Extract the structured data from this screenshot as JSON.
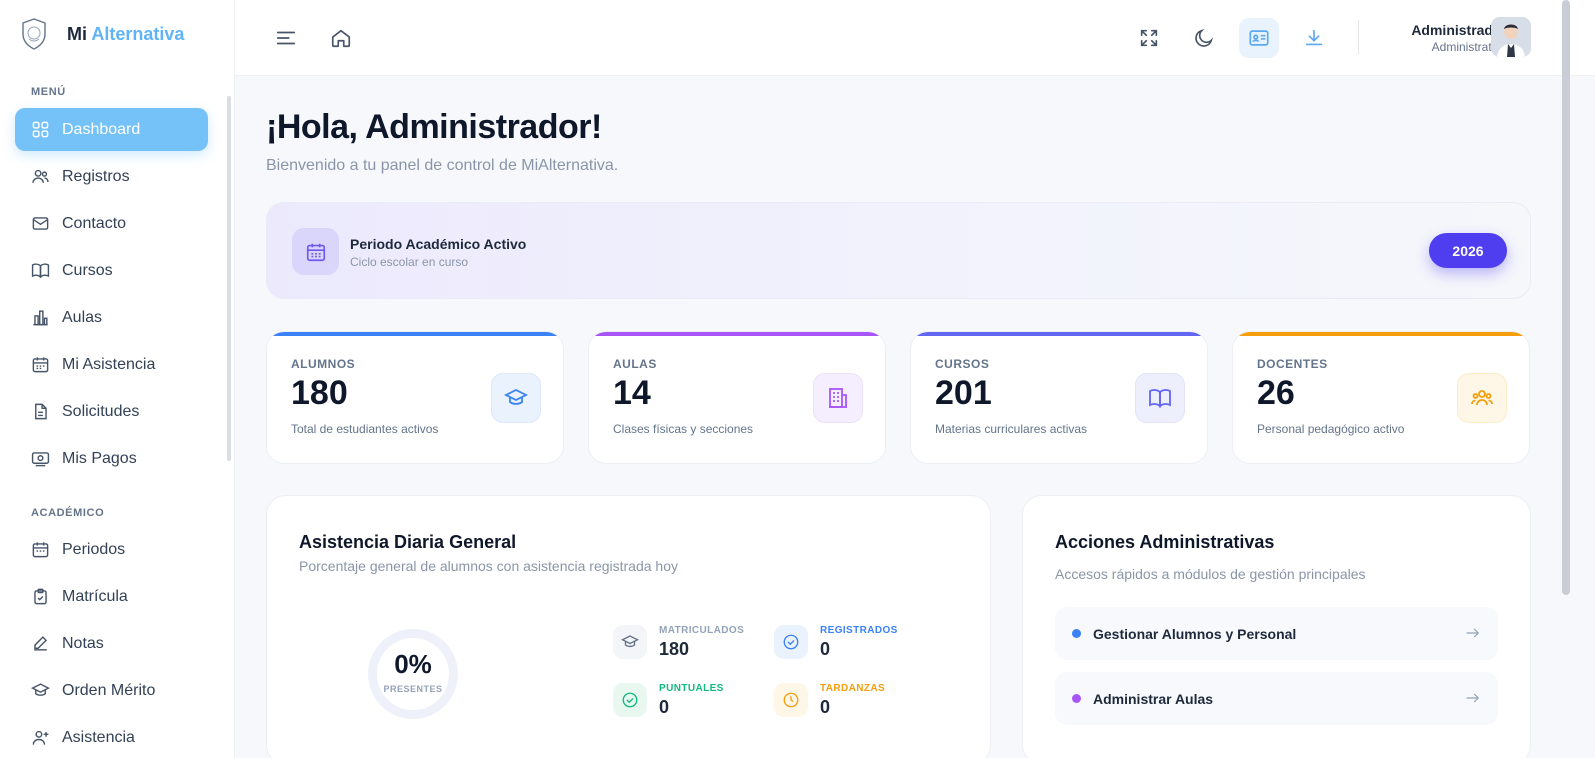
{
  "brand": {
    "name_prefix": "Mi",
    "name_accent": "Alternativa"
  },
  "sidebar": {
    "sections": [
      {
        "label": "MENÚ",
        "items": [
          {
            "label": "Dashboard",
            "icon": "grid-icon",
            "active": true
          },
          {
            "label": "Registros",
            "icon": "users-icon"
          },
          {
            "label": "Contacto",
            "icon": "mail-icon"
          },
          {
            "label": "Cursos",
            "icon": "book-icon"
          },
          {
            "label": "Aulas",
            "icon": "building-chart-icon"
          },
          {
            "label": "Mi Asistencia",
            "icon": "calendar-icon"
          },
          {
            "label": "Solicitudes",
            "icon": "file-icon"
          },
          {
            "label": "Mis Pagos",
            "icon": "money-icon"
          }
        ]
      },
      {
        "label": "ACADÉMICO",
        "items": [
          {
            "label": "Periodos",
            "icon": "calendar-icon"
          },
          {
            "label": "Matrícula",
            "icon": "clipboard-icon"
          },
          {
            "label": "Notas",
            "icon": "edit-icon"
          },
          {
            "label": "Orden Mérito",
            "icon": "graduation-cap-icon"
          },
          {
            "label": "Asistencia",
            "icon": "user-plus-icon"
          }
        ]
      }
    ]
  },
  "header": {
    "user_name": "Administrador",
    "user_role": "Administrativo"
  },
  "greeting": {
    "title": "¡Hola, Administrador!",
    "subtitle": "Bienvenido a tu panel de control de MiAlternativa."
  },
  "period": {
    "title": "Periodo Académico Activo",
    "subtitle": "Ciclo escolar en curso",
    "year": "2026"
  },
  "stats": [
    {
      "label": "ALUMNOS",
      "value": "180",
      "desc": "Total de estudiantes activos",
      "color": "#3b82f6"
    },
    {
      "label": "AULAS",
      "value": "14",
      "desc": "Clases físicas y secciones",
      "color": "#a855f7"
    },
    {
      "label": "CURSOS",
      "value": "201",
      "desc": "Materias curriculares activas",
      "color": "#6366f1"
    },
    {
      "label": "DOCENTES",
      "value": "26",
      "desc": "Personal pedagógico activo",
      "color": "#f59e0b"
    }
  ],
  "attendance": {
    "title": "Asistencia Diaria General",
    "subtitle": "Porcentaje general de alumnos con asistencia registrada hoy",
    "percent": "0%",
    "percent_label": "PRESENTES",
    "metrics": [
      {
        "label": "MATRICULADOS",
        "value": "180",
        "color": "#94a3b8"
      },
      {
        "label": "REGISTRADOS",
        "value": "0",
        "color": "#3b82f6"
      },
      {
        "label": "PUNTUALES",
        "value": "0",
        "color": "#10b981"
      },
      {
        "label": "TARDANZAS",
        "value": "0",
        "color": "#f59e0b"
      }
    ]
  },
  "admin_actions": {
    "title": "Acciones Administrativas",
    "subtitle": "Accesos rápidos a módulos de gestión principales",
    "items": [
      {
        "label": "Gestionar Alumnos y Personal",
        "color": "#3b82f6"
      },
      {
        "label": "Administrar Aulas",
        "color": "#a855f7"
      }
    ]
  }
}
